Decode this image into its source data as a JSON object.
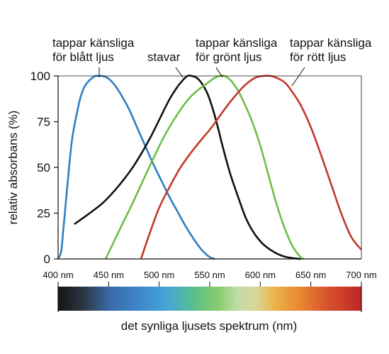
{
  "chart_data": {
    "type": "line",
    "ylabel": "relativ absorbans (%)",
    "xlabel": "det synliga ljusets spektrum (nm)",
    "ylim": [
      0,
      100
    ],
    "xlim": [
      400,
      700
    ],
    "y_ticks": [
      "0",
      "25",
      "50",
      "75",
      "100"
    ],
    "y_tick_values": [
      0,
      25,
      50,
      75,
      100
    ],
    "x_ticks": [
      "400 nm",
      "450 nm",
      "500 nm",
      "550 nm",
      "600 nm",
      "650 nm",
      "700 nm"
    ],
    "x_tick_values": [
      400,
      450,
      500,
      550,
      600,
      650,
      700
    ],
    "grid": false,
    "series": [
      {
        "label": "tappar känsliga\nför blått ljus",
        "color": "#2f7fc1",
        "x": [
          400,
          403,
          405,
          408,
          411,
          414,
          418,
          422,
          426,
          430,
          434,
          437,
          440,
          443,
          447,
          451,
          456,
          462,
          470,
          478,
          486,
          494,
          502,
          510,
          518,
          526,
          534,
          542,
          550,
          555
        ],
        "y": [
          0,
          4,
          15,
          33,
          51,
          66,
          78,
          88,
          94,
          97,
          99,
          100,
          100,
          100,
          99.5,
          98,
          95,
          90,
          82,
          72,
          62,
          52,
          43,
          34,
          26,
          18,
          11,
          5,
          1,
          0
        ]
      },
      {
        "label": "stavar",
        "color": "#111111",
        "x": [
          416,
          430,
          445,
          460,
          475,
          490,
          500,
          510,
          518,
          524,
          528,
          532,
          537,
          542,
          548,
          553,
          558,
          563,
          570,
          578,
          586,
          594,
          602,
          610,
          618,
          626,
          634,
          640
        ],
        "y": [
          19,
          24.5,
          31,
          40,
          51,
          65,
          76,
          87,
          94,
          98,
          100,
          100,
          99,
          96,
          90,
          82,
          72,
          61,
          47,
          34,
          22,
          14,
          8.5,
          5,
          2.5,
          1,
          0.3,
          0
        ]
      },
      {
        "label": "tappar känsliga\nför grönt ljus",
        "color": "#6dbe45",
        "x": [
          447,
          460,
          475,
          490,
          505,
          518,
          530,
          540,
          550,
          555,
          560,
          564,
          570,
          578,
          585,
          592,
          600,
          608,
          615,
          622,
          630,
          636,
          640,
          643
        ],
        "y": [
          0,
          15,
          32,
          50,
          67,
          79,
          88,
          93,
          97,
          99,
          100,
          100,
          98,
          92,
          84,
          75,
          62,
          46,
          32,
          20,
          9,
          3.5,
          1,
          0
        ]
      },
      {
        "label": "tappar känsliga\nför rött ljus",
        "color": "#c0392b",
        "x": [
          482,
          490,
          500,
          510,
          520,
          530,
          540,
          552,
          565,
          575,
          585,
          595,
          603,
          610,
          618,
          625,
          632,
          640,
          650,
          660,
          670,
          680,
          690,
          700
        ],
        "y": [
          0,
          13,
          28,
          39,
          49,
          57,
          64,
          72,
          82,
          89,
          95,
          99,
          100,
          100,
          98.5,
          96,
          91,
          84,
          72,
          57,
          41,
          25,
          12,
          5
        ]
      }
    ]
  }
}
